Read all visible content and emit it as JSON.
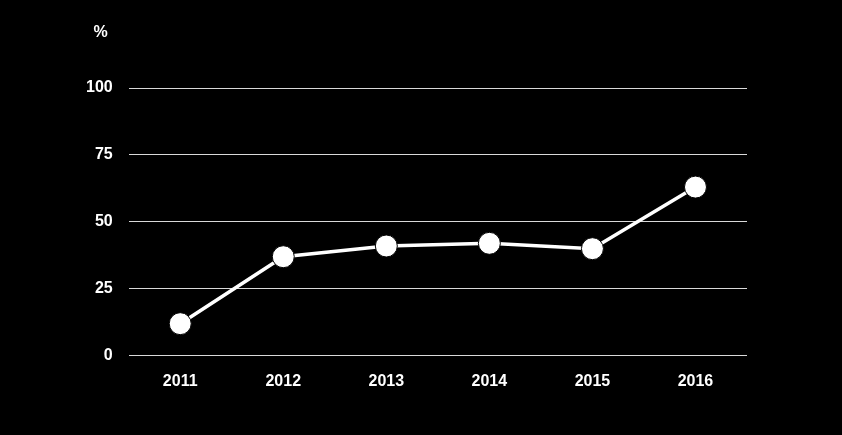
{
  "chart_data": {
    "type": "line",
    "ylabel": "%",
    "categories": [
      "2011",
      "2012",
      "2013",
      "2014",
      "2015",
      "2016"
    ],
    "values": [
      12,
      37,
      41,
      42,
      40,
      63
    ],
    "color": "#ffffff",
    "marker": "circle",
    "ylim": [
      0,
      100
    ],
    "yticks": [
      0,
      25,
      50,
      75,
      100
    ],
    "grid": true
  }
}
